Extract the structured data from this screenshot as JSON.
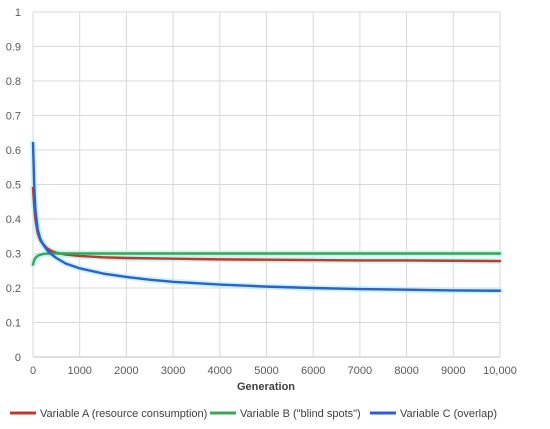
{
  "chart_data": {
    "type": "line",
    "title": "",
    "xlabel": "Generation",
    "ylabel": "",
    "xlim": [
      0,
      10000
    ],
    "ylim": [
      0,
      1
    ],
    "x_ticks": [
      0,
      1000,
      2000,
      3000,
      4000,
      5000,
      6000,
      7000,
      8000,
      9000,
      10000
    ],
    "x_tick_labels": [
      "0",
      "1000",
      "2000",
      "3000",
      "4000",
      "5000",
      "6000",
      "7000",
      "8000",
      "9000",
      "10,000"
    ],
    "y_ticks": [
      0,
      0.1,
      0.2,
      0.3,
      0.4,
      0.5,
      0.6,
      0.7,
      0.8,
      0.9,
      1
    ],
    "y_tick_labels": [
      "0",
      "0.1",
      "0.2",
      "0.3",
      "0.4",
      "0.5",
      "0.6",
      "0.7",
      "0.8",
      "0.9",
      "1"
    ],
    "grid": true,
    "legend_position": "bottom",
    "series": [
      {
        "name": "Variable A (resource consumption)",
        "color": "#c0392b",
        "x": [
          0,
          25,
          50,
          100,
          150,
          200,
          300,
          400,
          500,
          700,
          1000,
          1500,
          2000,
          3000,
          4000,
          5000,
          6000,
          7000,
          8000,
          9000,
          10000
        ],
        "y": [
          0.49,
          0.44,
          0.4,
          0.36,
          0.34,
          0.33,
          0.315,
          0.307,
          0.302,
          0.297,
          0.293,
          0.289,
          0.287,
          0.285,
          0.283,
          0.282,
          0.281,
          0.28,
          0.28,
          0.279,
          0.278
        ]
      },
      {
        "name": "Variable B (\"blind spots\")",
        "color": "#3aa655",
        "x": [
          0,
          25,
          50,
          100,
          150,
          200,
          300,
          400,
          500,
          700,
          1000,
          2000,
          3000,
          4000,
          5000,
          6000,
          7000,
          8000,
          9000,
          10000
        ],
        "y": [
          0.268,
          0.28,
          0.287,
          0.293,
          0.296,
          0.298,
          0.3,
          0.3,
          0.3,
          0.3,
          0.3,
          0.3,
          0.3,
          0.3,
          0.3,
          0.3,
          0.3,
          0.3,
          0.3,
          0.3
        ]
      },
      {
        "name": "Variable C (overlap)",
        "color": "#2e5fd1",
        "x": [
          0,
          25,
          50,
          100,
          150,
          200,
          300,
          400,
          500,
          700,
          1000,
          1500,
          2000,
          2500,
          3000,
          4000,
          5000,
          6000,
          7000,
          8000,
          9000,
          10000
        ],
        "y": [
          0.62,
          0.5,
          0.43,
          0.37,
          0.345,
          0.33,
          0.31,
          0.297,
          0.287,
          0.271,
          0.257,
          0.242,
          0.232,
          0.224,
          0.218,
          0.21,
          0.204,
          0.2,
          0.197,
          0.195,
          0.193,
          0.192
        ]
      }
    ]
  }
}
